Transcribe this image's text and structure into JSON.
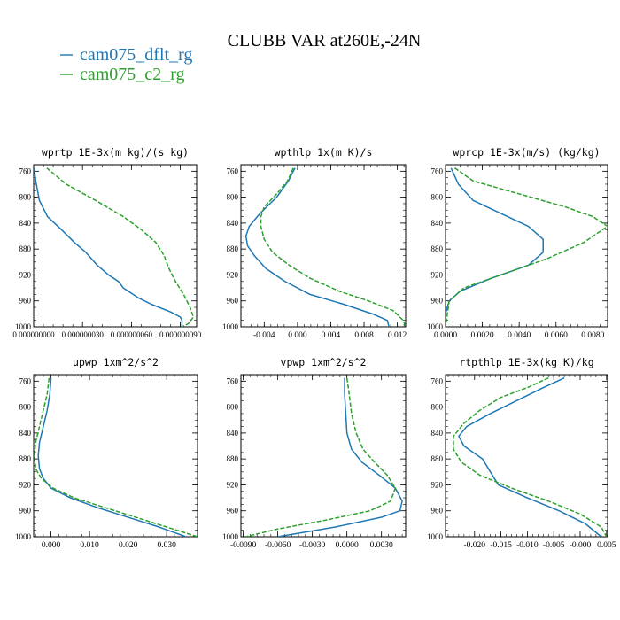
{
  "title": "CLUBB VAR at260E,-24N",
  "legend": [
    {
      "name": "cam075_dflt_rg",
      "color": "#1f77b4"
    },
    {
      "name": "cam075_c2_rg",
      "color": "#2ca02c"
    }
  ],
  "chart_data": [
    {
      "type": "line",
      "title": "wprtp  1E-3x(m kg)/(s kg)",
      "xlim": [
        0.0,
        1e-07
      ],
      "ylim": [
        1000,
        750
      ],
      "xticks": [
        {
          "v": 0.0,
          "label": "0.000000000"
        },
        {
          "v": 3e-08,
          "label": "0.000000030"
        },
        {
          "v": 6e-08,
          "label": "0.000000060"
        },
        {
          "v": 9e-08,
          "label": "0.000000090"
        }
      ],
      "yticks": [
        760,
        800,
        840,
        880,
        920,
        960,
        1000
      ],
      "series": [
        {
          "name": "cam075_dflt_rg",
          "color": "#1f77b4",
          "dash": "",
          "x": [
            3e-10,
            1.3e-09,
            3.5e-09,
            8.5e-09,
            1.7e-08,
            2.5e-08,
            3.2e-08,
            3.9e-08,
            4.6e-08,
            5.2e-08,
            5.5e-08,
            6.4e-08,
            7.2e-08,
            8.4e-08,
            9e-08,
            9.1e-08,
            9.1e-08
          ],
          "y": [
            755,
            775,
            805,
            830,
            850,
            870,
            885,
            905,
            920,
            930,
            940,
            955,
            965,
            977,
            985,
            990,
            1000
          ]
        },
        {
          "name": "cam075_c2_rg",
          "color": "#2ca02c",
          "dash": "5,2",
          "x": [
            8e-09,
            2e-08,
            3.8e-08,
            5.5e-08,
            6.6e-08,
            7.5e-08,
            8e-08,
            8.3e-08,
            8.7e-08,
            9.2e-08,
            9.6e-08,
            9.8e-08,
            9.5e-08,
            9.1e-08
          ],
          "y": [
            755,
            780,
            805,
            830,
            850,
            870,
            890,
            910,
            930,
            950,
            970,
            985,
            995,
            1000
          ]
        }
      ]
    },
    {
      "type": "line",
      "title": "wpthlp  1x(m K)/s",
      "xlim": [
        -0.0068,
        0.013
      ],
      "ylim": [
        1000,
        750
      ],
      "xticks": [
        {
          "v": -0.004,
          "label": "-0.004"
        },
        {
          "v": 0.0,
          "label": "0.000"
        },
        {
          "v": 0.004,
          "label": "0.004"
        },
        {
          "v": 0.008,
          "label": "0.008"
        },
        {
          "v": 0.012,
          "label": "0.012"
        }
      ],
      "yticks": [
        760,
        800,
        840,
        880,
        920,
        960,
        1000
      ],
      "series": [
        {
          "name": "cam075_dflt_rg",
          "color": "#1f77b4",
          "dash": "",
          "x": [
            -0.0003,
            -0.0011,
            -0.0025,
            -0.0045,
            -0.0058,
            -0.0062,
            -0.006,
            -0.0052,
            -0.0038,
            -0.0015,
            0.0015,
            0.0055,
            0.009,
            0.0108,
            0.011
          ],
          "y": [
            755,
            775,
            800,
            825,
            845,
            860,
            875,
            890,
            910,
            930,
            950,
            965,
            980,
            990,
            1000
          ]
        },
        {
          "name": "cam075_c2_rg",
          "color": "#2ca02c",
          "dash": "5,2",
          "x": [
            -0.0005,
            -0.0012,
            -0.0025,
            -0.004,
            -0.0044,
            -0.0044,
            -0.004,
            -0.003,
            -0.001,
            0.0015,
            0.005,
            0.0085,
            0.0115,
            0.0127,
            0.013
          ],
          "y": [
            755,
            775,
            795,
            815,
            830,
            845,
            865,
            885,
            905,
            925,
            945,
            960,
            975,
            990,
            1000
          ]
        }
      ]
    },
    {
      "type": "line",
      "title": "wprcp  1E-3x(m/s) (kg/kg)",
      "xlim": [
        0.0,
        0.0088
      ],
      "ylim": [
        1000,
        750
      ],
      "xticks": [
        {
          "v": 0.0,
          "label": "0.0000"
        },
        {
          "v": 0.002,
          "label": "0.0020"
        },
        {
          "v": 0.004,
          "label": "0.0040"
        },
        {
          "v": 0.006,
          "label": "0.0060"
        },
        {
          "v": 0.008,
          "label": "0.0080"
        }
      ],
      "yticks": [
        760,
        800,
        840,
        880,
        920,
        960,
        1000
      ],
      "series": [
        {
          "name": "cam075_dflt_rg",
          "color": "#1f77b4",
          "dash": "",
          "x": [
            0.0003,
            0.0007,
            0.0015,
            0.003,
            0.0045,
            0.0053,
            0.0053,
            0.0045,
            0.0025,
            0.0008,
            0.0002,
            0.0,
            0.0
          ],
          "y": [
            755,
            780,
            805,
            825,
            845,
            865,
            885,
            905,
            925,
            945,
            960,
            980,
            1000
          ]
        },
        {
          "name": "cam075_c2_rg",
          "color": "#2ca02c",
          "dash": "5,2",
          "x": [
            0.0005,
            0.0015,
            0.004,
            0.0065,
            0.008,
            0.0088,
            0.0075,
            0.0055,
            0.003,
            0.001,
            0.0002,
            0.0
          ],
          "y": [
            755,
            775,
            795,
            815,
            830,
            845,
            870,
            895,
            920,
            940,
            960,
            1000
          ]
        }
      ]
    },
    {
      "type": "line",
      "title": "upwp  1xm^2/s^2",
      "xlim": [
        -0.0045,
        0.038
      ],
      "ylim": [
        1000,
        750
      ],
      "xticks": [
        {
          "v": 0.0,
          "label": "0.000"
        },
        {
          "v": 0.01,
          "label": "0.010"
        },
        {
          "v": 0.02,
          "label": "0.020"
        },
        {
          "v": 0.03,
          "label": "0.030"
        }
      ],
      "yticks": [
        760,
        800,
        840,
        880,
        920,
        960,
        1000
      ],
      "series": [
        {
          "name": "cam075_dflt_rg",
          "color": "#1f77b4",
          "dash": "",
          "x": [
            0.0,
            -0.0003,
            -0.001,
            -0.002,
            -0.003,
            -0.0033,
            -0.003,
            -0.002,
            0.0,
            0.005,
            0.012,
            0.02,
            0.028,
            0.035
          ],
          "y": [
            755,
            780,
            805,
            830,
            855,
            875,
            895,
            910,
            925,
            940,
            955,
            970,
            985,
            1000
          ]
        },
        {
          "name": "cam075_c2_rg",
          "color": "#2ca02c",
          "dash": "5,2",
          "x": [
            -0.0005,
            -0.001,
            -0.002,
            -0.003,
            -0.004,
            -0.0043,
            -0.004,
            -0.0025,
            0.0005,
            0.006,
            0.014,
            0.022,
            0.03,
            0.038
          ],
          "y": [
            755,
            780,
            805,
            830,
            855,
            875,
            895,
            910,
            925,
            940,
            955,
            970,
            985,
            1000
          ]
        }
      ]
    },
    {
      "type": "line",
      "title": "vpwp  1xm^2/s^2",
      "xlim": [
        -0.0092,
        0.0051
      ],
      "ylim": [
        1000,
        750
      ],
      "xticks": [
        {
          "v": -0.009,
          "label": "-0.0090"
        },
        {
          "v": -0.006,
          "label": "-0.0060"
        },
        {
          "v": -0.003,
          "label": "-0.0030"
        },
        {
          "v": 0.0,
          "label": "0.0000"
        },
        {
          "v": 0.003,
          "label": "0.0030"
        }
      ],
      "yticks": [
        760,
        800,
        840,
        880,
        920,
        960,
        1000
      ],
      "series": [
        {
          "name": "cam075_dflt_rg",
          "color": "#1f77b4",
          "dash": "",
          "x": [
            -0.0002,
            -0.0002,
            -0.0001,
            0.0,
            0.0004,
            0.0013,
            0.0028,
            0.0042,
            0.0048,
            0.0046,
            0.003,
            -0.001,
            -0.006
          ],
          "y": [
            755,
            780,
            810,
            840,
            865,
            885,
            905,
            925,
            945,
            960,
            970,
            985,
            1000
          ]
        },
        {
          "name": "cam075_c2_rg",
          "color": "#2ca02c",
          "dash": "5,2",
          "x": [
            0.0,
            0.0002,
            0.0004,
            0.0008,
            0.0014,
            0.0024,
            0.0035,
            0.0042,
            0.0038,
            0.002,
            -0.002,
            -0.006,
            -0.0088
          ],
          "y": [
            755,
            780,
            810,
            840,
            865,
            885,
            905,
            925,
            945,
            960,
            975,
            988,
            1000
          ]
        }
      ]
    },
    {
      "type": "line",
      "title": "rtpthlp  1E-3x(kg K)/kg",
      "xlim": [
        -0.0255,
        0.0052
      ],
      "ylim": [
        1000,
        750
      ],
      "xticks": [
        {
          "v": -0.02,
          "label": "-0.020"
        },
        {
          "v": -0.015,
          "label": "-0.015"
        },
        {
          "v": -0.01,
          "label": "-0.010"
        },
        {
          "v": -0.005,
          "label": "-0.005"
        },
        {
          "v": 0.0,
          "label": "-0.000"
        },
        {
          "v": 0.005,
          "label": "0.005"
        }
      ],
      "yticks": [
        760,
        800,
        840,
        880,
        920,
        960,
        1000
      ],
      "series": [
        {
          "name": "cam075_dflt_rg",
          "color": "#1f77b4",
          "dash": "",
          "x": [
            -0.003,
            -0.007,
            -0.012,
            -0.017,
            -0.0215,
            -0.023,
            -0.022,
            -0.0185,
            -0.017,
            -0.0155,
            -0.01,
            -0.004,
            0.001,
            0.004
          ],
          "y": [
            755,
            770,
            790,
            810,
            830,
            845,
            860,
            880,
            900,
            920,
            940,
            960,
            980,
            1000
          ]
        },
        {
          "name": "cam075_c2_rg",
          "color": "#2ca02c",
          "dash": "5,2",
          "x": [
            -0.006,
            -0.01,
            -0.015,
            -0.019,
            -0.022,
            -0.024,
            -0.024,
            -0.0225,
            -0.019,
            -0.013,
            -0.006,
            0.0,
            0.004,
            0.005
          ],
          "y": [
            755,
            770,
            785,
            805,
            825,
            845,
            865,
            885,
            905,
            925,
            945,
            965,
            985,
            1000
          ]
        }
      ]
    }
  ]
}
